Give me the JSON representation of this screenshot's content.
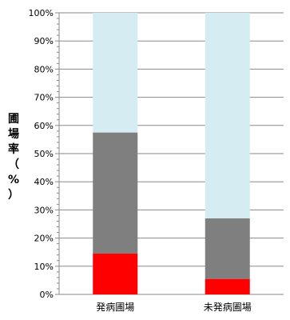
{
  "chart_data": {
    "type": "bar",
    "stacked": true,
    "title": "",
    "xlabel": "",
    "ylabel": "圃場率（%）",
    "ylim": [
      0,
      100
    ],
    "yticks": [
      "0%",
      "10%",
      "20%",
      "30%",
      "40%",
      "50%",
      "60%",
      "70%",
      "80%",
      "90%",
      "100%"
    ],
    "categories": [
      "発病圃場",
      "未発病圃場"
    ],
    "series": [
      {
        "values": [
          14.5,
          5.5
        ],
        "color": "#ff0000"
      },
      {
        "values": [
          43.0,
          21.5
        ],
        "color": "#7f7f7f"
      },
      {
        "values": [
          42.5,
          73.0
        ],
        "color": "#d6ecf3"
      }
    ],
    "grid": true,
    "legend": "none"
  }
}
